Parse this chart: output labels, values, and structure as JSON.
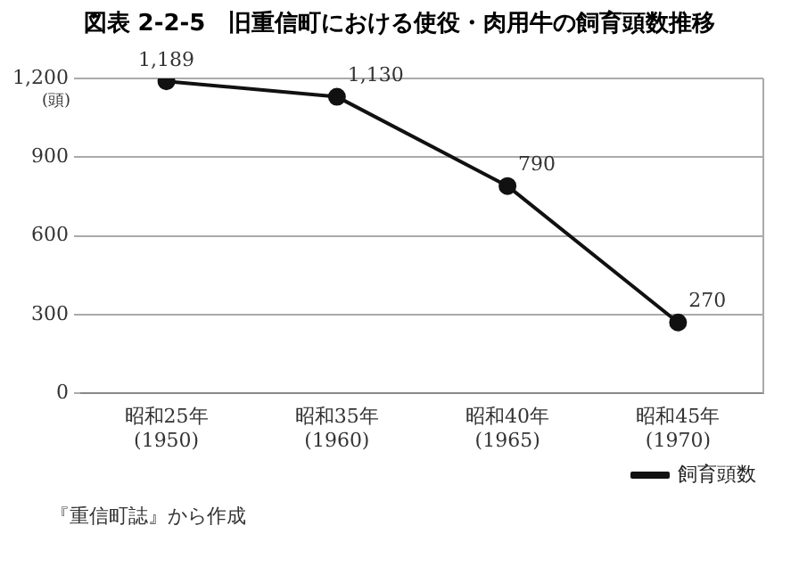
{
  "chart_data": {
    "type": "line",
    "title": "図表 2-2-5　旧重信町における使役・肉用牛の飼育頭数推移",
    "ylabel": "(頭)",
    "categories": [
      "昭和25年\n(1950)",
      "昭和35年\n(1960)",
      "昭和40年\n(1965)",
      "昭和45年\n(1970)"
    ],
    "series": [
      {
        "name": "飼育頭数",
        "color": "#111111",
        "values": [
          1189,
          1130,
          790,
          270
        ],
        "value_labels": [
          "1,189",
          "1,130",
          "790",
          "270"
        ]
      }
    ],
    "ylim": [
      0,
      1200
    ],
    "yticks": [
      0,
      300,
      600,
      900,
      {
        "value": 1200,
        "label": "1,200"
      }
    ],
    "grid": "y",
    "legend": "bottom right",
    "marker": "circle",
    "line_style": "solid",
    "annotations": [
      "『重信町誌』から作成"
    ]
  }
}
